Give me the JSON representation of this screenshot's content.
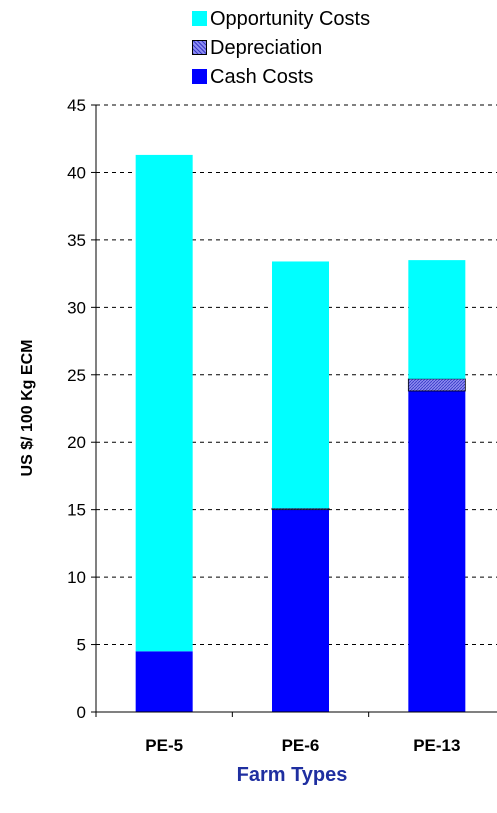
{
  "chart_data": {
    "type": "bar",
    "stacked": true,
    "categories": [
      "PE-5",
      "PE-6",
      "PE-13"
    ],
    "series": [
      {
        "name": "Cash Costs",
        "values": [
          4.5,
          15.0,
          23.8
        ],
        "color": "#0000FF"
      },
      {
        "name": "Depreciation",
        "values": [
          0.0,
          0.1,
          0.9
        ],
        "color": "#8C8CF0",
        "pattern": "hatched"
      },
      {
        "name": "Opportunity Costs",
        "values": [
          36.8,
          18.3,
          8.8
        ],
        "color": "#00FFFF"
      }
    ],
    "legend_order": [
      "Opportunity Costs",
      "Depreciation",
      "Cash Costs"
    ],
    "legend_position": "top",
    "xlabel": "Farm Types",
    "ylabel": "US $/ 100 Kg ECM",
    "ylim": [
      0,
      45
    ],
    "yticks": [
      "0",
      "5",
      "10",
      "15",
      "20",
      "25",
      "30",
      "35",
      "40",
      "45"
    ],
    "grid": "horizontal dashed",
    "xlabel_color": "#1F2FA0"
  }
}
